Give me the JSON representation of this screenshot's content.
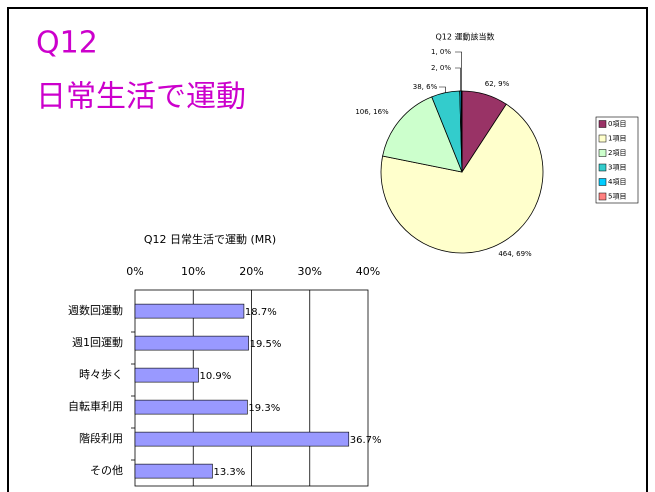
{
  "slide_title": [
    "Q12",
    "日常生活で運動"
  ],
  "chart_data": [
    {
      "type": "pie",
      "title": "Q12 運動該当数",
      "categories": [
        "0項目",
        "1項目",
        "2項目",
        "3項目",
        "4項目",
        "5項目"
      ],
      "values": [
        62,
        464,
        106,
        38,
        2,
        1
      ],
      "value_labels": [
        "62, 9%",
        "464, 69%",
        "106, 16%",
        "38, 6%",
        "2, 0%",
        "1, 0%"
      ],
      "colors": [
        "#993366",
        "#ffffcc",
        "#ccffcc",
        "#33cccc",
        "#00ccff",
        "#ff8080"
      ],
      "legend": "right"
    },
    {
      "type": "barh",
      "title": "Q12 日常生活で運動 (MR)",
      "categories": [
        "週数回運動",
        "週1回運動",
        "時々歩く",
        "自転車利用",
        "階段利用",
        "その他"
      ],
      "values": [
        18.7,
        19.5,
        10.9,
        19.3,
        36.7,
        13.3
      ],
      "value_labels": [
        "18.7%",
        "19.5%",
        "10.9%",
        "19.3%",
        "36.7%",
        "13.3%"
      ],
      "color": "#9999ff",
      "xlim": [
        0,
        40
      ],
      "xticks": [
        {
          "value": 0,
          "label": "0%"
        },
        {
          "value": 10,
          "label": "10%"
        },
        {
          "value": 20,
          "label": "20%"
        },
        {
          "value": 30,
          "label": "30%"
        },
        {
          "value": 40,
          "label": "40%"
        }
      ],
      "grid": true
    }
  ]
}
